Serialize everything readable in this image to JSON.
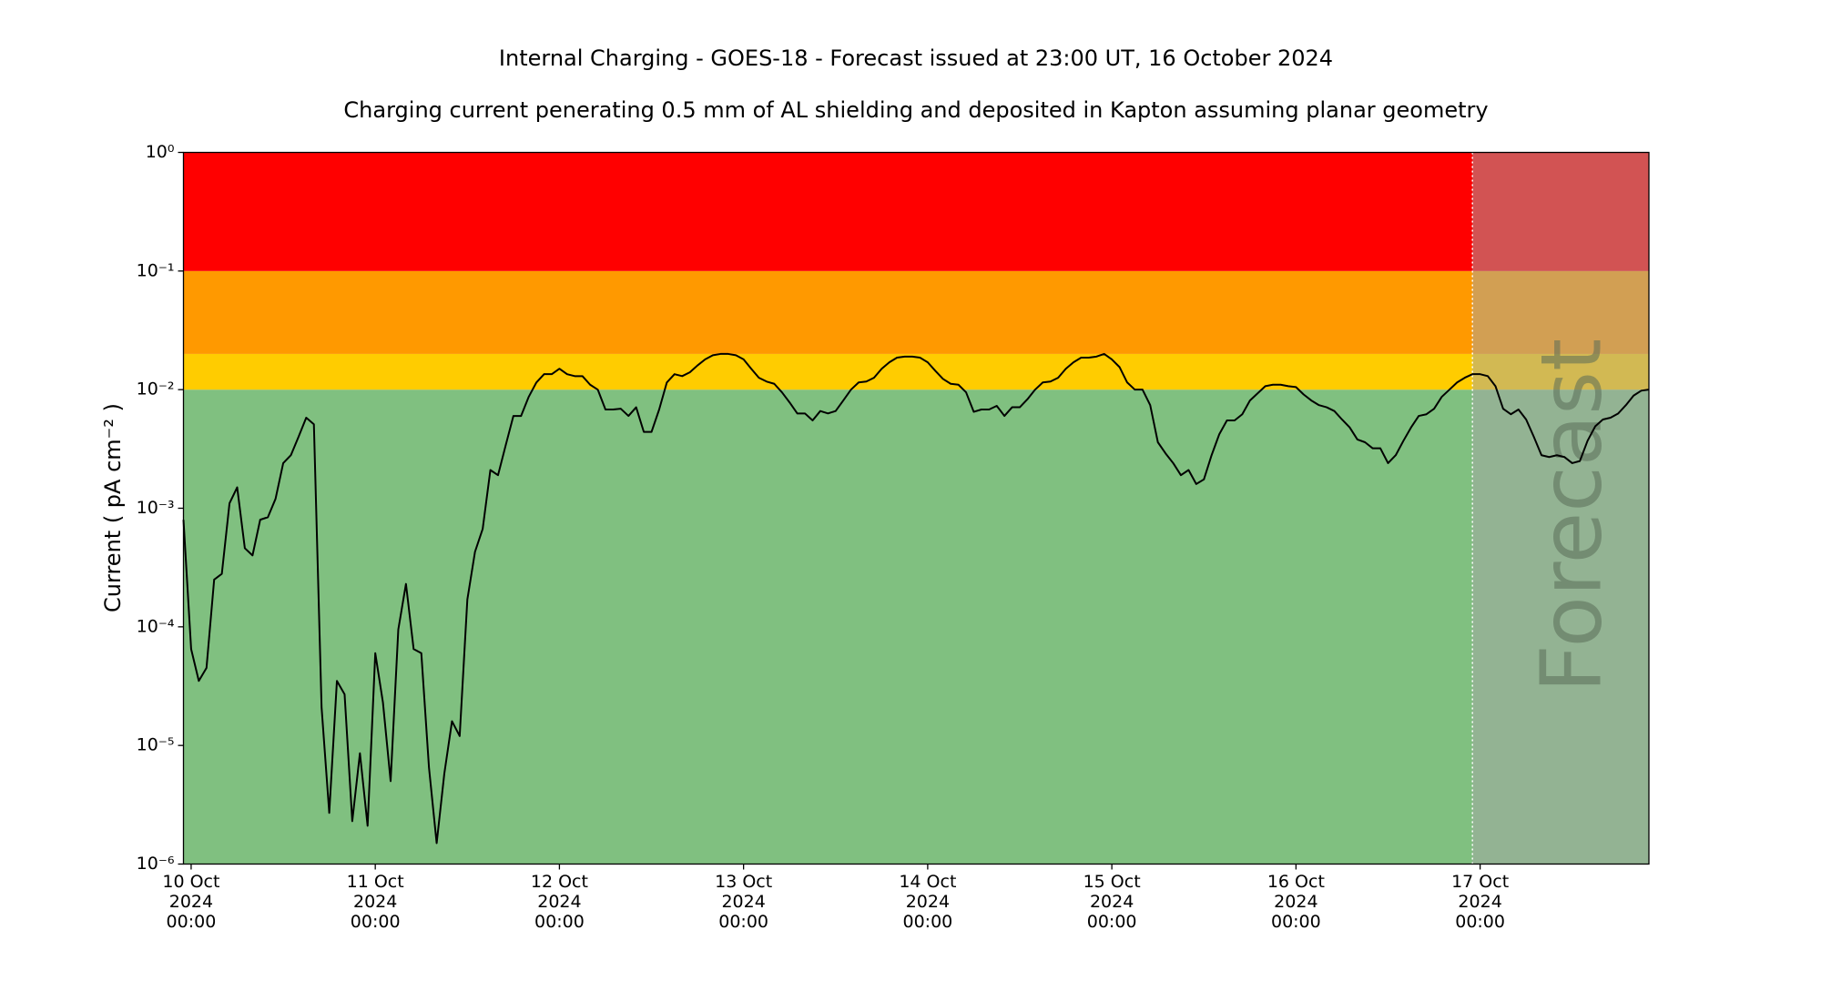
{
  "chart_data": {
    "type": "line",
    "title": "Internal Charging - GOES-18 - Forecast issued at 23:00 UT, 16 October 2024",
    "subtitle": "Charging current penerating 0.5 mm of AL shielding and deposited in Kapton assuming planar geometry",
    "y_label": "Current ( pA cm⁻² )",
    "log_y": true,
    "ylim": [
      1e-06,
      1
    ],
    "yticks": [
      {
        "value": 1e-06,
        "label": "10⁻⁶"
      },
      {
        "value": 1e-05,
        "label": "10⁻⁵"
      },
      {
        "value": 0.0001,
        "label": "10⁻⁴"
      },
      {
        "value": 0.001,
        "label": "10⁻³"
      },
      {
        "value": 0.01,
        "label": "10⁻²"
      },
      {
        "value": 0.1,
        "label": "10⁻¹"
      },
      {
        "value": 1,
        "label": "10⁰"
      }
    ],
    "xlim": [
      "2024-10-09 23:00",
      "2024-10-17 22:00"
    ],
    "xticks": [
      {
        "value": "2024-10-10 00:00",
        "label": "10 Oct\n2024\n00:00"
      },
      {
        "value": "2024-10-11 00:00",
        "label": "11 Oct\n2024\n00:00"
      },
      {
        "value": "2024-10-12 00:00",
        "label": "12 Oct\n2024\n00:00"
      },
      {
        "value": "2024-10-13 00:00",
        "label": "13 Oct\n2024\n00:00"
      },
      {
        "value": "2024-10-14 00:00",
        "label": "14 Oct\n2024\n00:00"
      },
      {
        "value": "2024-10-15 00:00",
        "label": "15 Oct\n2024\n00:00"
      },
      {
        "value": "2024-10-16 00:00",
        "label": "16 Oct\n2024\n00:00"
      },
      {
        "value": "2024-10-17 00:00",
        "label": "17 Oct\n2024\n00:00"
      }
    ],
    "bands": [
      {
        "from": 1e-06,
        "to": 0.01,
        "color": "#80c080"
      },
      {
        "from": 0.01,
        "to": 0.02,
        "color": "#ffcc00"
      },
      {
        "from": 0.02,
        "to": 0.1,
        "color": "#ff9900"
      },
      {
        "from": 0.1,
        "to": 1,
        "color": "#ff0000"
      }
    ],
    "forecast": {
      "start": "2024-10-16 23:00",
      "label": "Forecast",
      "color": "rgba(166,166,166,0.5)"
    },
    "series": [
      {
        "color": "#000000",
        "x": [
          "2024-10-09 23:00",
          "2024-10-10 00:00",
          "2024-10-10 01:00",
          "2024-10-10 02:00",
          "2024-10-10 03:00",
          "2024-10-10 04:00",
          "2024-10-10 05:00",
          "2024-10-10 06:00",
          "2024-10-10 07:00",
          "2024-10-10 08:00",
          "2024-10-10 09:00",
          "2024-10-10 10:00",
          "2024-10-10 11:00",
          "2024-10-10 12:00",
          "2024-10-10 13:00",
          "2024-10-10 14:00",
          "2024-10-10 15:00",
          "2024-10-10 16:00",
          "2024-10-10 17:00",
          "2024-10-10 18:00",
          "2024-10-10 19:00",
          "2024-10-10 20:00",
          "2024-10-10 21:00",
          "2024-10-10 22:00",
          "2024-10-10 23:00",
          "2024-10-11 00:00",
          "2024-10-11 01:00",
          "2024-10-11 02:00",
          "2024-10-11 03:00",
          "2024-10-11 04:00",
          "2024-10-11 05:00",
          "2024-10-11 06:00",
          "2024-10-11 07:00",
          "2024-10-11 08:00",
          "2024-10-11 09:00",
          "2024-10-11 10:00",
          "2024-10-11 11:00",
          "2024-10-11 12:00",
          "2024-10-11 13:00",
          "2024-10-11 14:00",
          "2024-10-11 15:00",
          "2024-10-11 16:00",
          "2024-10-11 17:00",
          "2024-10-11 18:00",
          "2024-10-11 19:00",
          "2024-10-11 20:00",
          "2024-10-11 21:00",
          "2024-10-11 22:00",
          "2024-10-11 23:00",
          "2024-10-12 00:00",
          "2024-10-12 01:00",
          "2024-10-12 02:00",
          "2024-10-12 03:00",
          "2024-10-12 04:00",
          "2024-10-12 05:00",
          "2024-10-12 06:00",
          "2024-10-12 07:00",
          "2024-10-12 08:00",
          "2024-10-12 09:00",
          "2024-10-12 10:00",
          "2024-10-12 11:00",
          "2024-10-12 12:00",
          "2024-10-12 13:00",
          "2024-10-12 14:00",
          "2024-10-12 15:00",
          "2024-10-12 16:00",
          "2024-10-12 17:00",
          "2024-10-12 18:00",
          "2024-10-12 19:00",
          "2024-10-12 20:00",
          "2024-10-12 21:00",
          "2024-10-12 22:00",
          "2024-10-12 23:00",
          "2024-10-13 00:00",
          "2024-10-13 01:00",
          "2024-10-13 02:00",
          "2024-10-13 03:00",
          "2024-10-13 04:00",
          "2024-10-13 05:00",
          "2024-10-13 06:00",
          "2024-10-13 07:00",
          "2024-10-13 08:00",
          "2024-10-13 09:00",
          "2024-10-13 10:00",
          "2024-10-13 11:00",
          "2024-10-13 12:00",
          "2024-10-13 13:00",
          "2024-10-13 14:00",
          "2024-10-13 15:00",
          "2024-10-13 16:00",
          "2024-10-13 17:00",
          "2024-10-13 18:00",
          "2024-10-13 19:00",
          "2024-10-13 20:00",
          "2024-10-13 21:00",
          "2024-10-13 22:00",
          "2024-10-13 23:00",
          "2024-10-14 00:00",
          "2024-10-14 01:00",
          "2024-10-14 02:00",
          "2024-10-14 03:00",
          "2024-10-14 04:00",
          "2024-10-14 05:00",
          "2024-10-14 06:00",
          "2024-10-14 07:00",
          "2024-10-14 08:00",
          "2024-10-14 09:00",
          "2024-10-14 10:00",
          "2024-10-14 11:00",
          "2024-10-14 12:00",
          "2024-10-14 13:00",
          "2024-10-14 14:00",
          "2024-10-14 15:00",
          "2024-10-14 16:00",
          "2024-10-14 17:00",
          "2024-10-14 18:00",
          "2024-10-14 19:00",
          "2024-10-14 20:00",
          "2024-10-14 21:00",
          "2024-10-14 22:00",
          "2024-10-14 23:00",
          "2024-10-15 00:00",
          "2024-10-15 01:00",
          "2024-10-15 02:00",
          "2024-10-15 03:00",
          "2024-10-15 04:00",
          "2024-10-15 05:00",
          "2024-10-15 06:00",
          "2024-10-15 07:00",
          "2024-10-15 08:00",
          "2024-10-15 09:00",
          "2024-10-15 10:00",
          "2024-10-15 11:00",
          "2024-10-15 12:00",
          "2024-10-15 13:00",
          "2024-10-15 14:00",
          "2024-10-15 15:00",
          "2024-10-15 16:00",
          "2024-10-15 17:00",
          "2024-10-15 18:00",
          "2024-10-15 19:00",
          "2024-10-15 20:00",
          "2024-10-15 21:00",
          "2024-10-15 22:00",
          "2024-10-15 23:00",
          "2024-10-16 00:00",
          "2024-10-16 01:00",
          "2024-10-16 02:00",
          "2024-10-16 03:00",
          "2024-10-16 04:00",
          "2024-10-16 05:00",
          "2024-10-16 06:00",
          "2024-10-16 07:00",
          "2024-10-16 08:00",
          "2024-10-16 09:00",
          "2024-10-16 10:00",
          "2024-10-16 11:00",
          "2024-10-16 12:00",
          "2024-10-16 13:00",
          "2024-10-16 14:00",
          "2024-10-16 15:00",
          "2024-10-16 16:00",
          "2024-10-16 17:00",
          "2024-10-16 18:00",
          "2024-10-16 19:00",
          "2024-10-16 20:00",
          "2024-10-16 21:00",
          "2024-10-16 22:00",
          "2024-10-16 23:00",
          "2024-10-17 00:00",
          "2024-10-17 01:00",
          "2024-10-17 02:00",
          "2024-10-17 03:00",
          "2024-10-17 04:00",
          "2024-10-17 05:00",
          "2024-10-17 06:00",
          "2024-10-17 07:00",
          "2024-10-17 08:00",
          "2024-10-17 09:00",
          "2024-10-17 10:00",
          "2024-10-17 11:00",
          "2024-10-17 12:00",
          "2024-10-17 13:00",
          "2024-10-17 14:00",
          "2024-10-17 15:00",
          "2024-10-17 16:00",
          "2024-10-17 17:00",
          "2024-10-17 18:00",
          "2024-10-17 19:00",
          "2024-10-17 20:00",
          "2024-10-17 21:00",
          "2024-10-17 22:00"
        ],
        "values": [
          0.0008,
          6.5e-05,
          3.5e-05,
          4.5e-05,
          0.00025,
          0.00028,
          0.0011,
          0.0015,
          0.00046,
          0.0004,
          0.0008,
          0.00084,
          0.0012,
          0.0024,
          0.0028,
          0.004,
          0.0058,
          0.0051,
          2.1e-05,
          2.7e-06,
          3.5e-05,
          2.7e-05,
          2.3e-06,
          8.6e-06,
          2.1e-06,
          6e-05,
          2.3e-05,
          5e-06,
          9.5e-05,
          0.00023,
          6.5e-05,
          6e-05,
          6.5e-06,
          1.5e-06,
          5.8e-06,
          1.6e-05,
          1.2e-05,
          0.00017,
          0.00043,
          0.00067,
          0.0021,
          0.0019,
          0.0034,
          0.006,
          0.006,
          0.0087,
          0.0115,
          0.0135,
          0.0135,
          0.015,
          0.0135,
          0.013,
          0.013,
          0.011,
          0.01,
          0.0068,
          0.0068,
          0.0069,
          0.006,
          0.0071,
          0.0044,
          0.0044,
          0.0068,
          0.0115,
          0.0135,
          0.013,
          0.014,
          0.016,
          0.018,
          0.0195,
          0.02,
          0.02,
          0.0195,
          0.018,
          0.015,
          0.0126,
          0.0117,
          0.0112,
          0.0095,
          0.0078,
          0.0063,
          0.0063,
          0.0055,
          0.0066,
          0.0063,
          0.0066,
          0.0081,
          0.01,
          0.0115,
          0.0117,
          0.0126,
          0.015,
          0.017,
          0.0186,
          0.019,
          0.019,
          0.0186,
          0.017,
          0.0144,
          0.0123,
          0.0112,
          0.011,
          0.0095,
          0.0065,
          0.0068,
          0.0068,
          0.0073,
          0.006,
          0.0071,
          0.0071,
          0.0083,
          0.01,
          0.0115,
          0.0117,
          0.0126,
          0.015,
          0.017,
          0.0186,
          0.0186,
          0.019,
          0.02,
          0.018,
          0.0155,
          0.0115,
          0.01,
          0.01,
          0.0074,
          0.0036,
          0.0029,
          0.0024,
          0.0019,
          0.0021,
          0.0016,
          0.00175,
          0.0028,
          0.0042,
          0.0055,
          0.0055,
          0.0062,
          0.0081,
          0.0093,
          0.0107,
          0.011,
          0.011,
          0.0107,
          0.0105,
          0.0091,
          0.0081,
          0.0074,
          0.0071,
          0.0066,
          0.0056,
          0.0048,
          0.0038,
          0.0036,
          0.0032,
          0.0032,
          0.0024,
          0.0028,
          0.0037,
          0.0048,
          0.006,
          0.0062,
          0.0069,
          0.0087,
          0.01,
          0.0115,
          0.0126,
          0.0135,
          0.0135,
          0.013,
          0.0107,
          0.0069,
          0.0062,
          0.0068,
          0.0056,
          0.004,
          0.0028,
          0.0027,
          0.0028,
          0.0027,
          0.0024,
          0.0025,
          0.0037,
          0.0049,
          0.0056,
          0.0058,
          0.0063,
          0.0074,
          0.0089,
          0.0098,
          0.01
        ]
      }
    ]
  }
}
